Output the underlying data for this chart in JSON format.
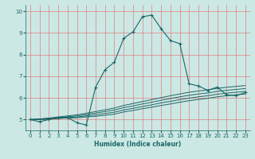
{
  "title": "",
  "xlabel": "Humidex (Indice chaleur)",
  "bg_color": "#cce8e4",
  "grid_color": "#e08080",
  "line_color": "#1a6666",
  "xlim": [
    -0.5,
    23.5
  ],
  "ylim": [
    4.5,
    10.3
  ],
  "xticks": [
    0,
    1,
    2,
    3,
    4,
    5,
    6,
    7,
    8,
    9,
    10,
    11,
    12,
    13,
    14,
    15,
    16,
    17,
    18,
    19,
    20,
    21,
    22,
    23
  ],
  "yticks": [
    5,
    6,
    7,
    8,
    9,
    10
  ],
  "main_x": [
    0,
    1,
    2,
    3,
    4,
    5,
    6,
    7,
    8,
    9,
    10,
    11,
    12,
    13,
    14,
    15,
    16,
    17,
    18,
    19,
    20,
    21,
    22,
    23
  ],
  "main_y": [
    5.0,
    4.9,
    5.0,
    5.1,
    5.1,
    4.85,
    4.75,
    6.5,
    7.3,
    7.65,
    8.75,
    9.05,
    9.75,
    9.82,
    9.2,
    8.65,
    8.5,
    6.65,
    6.55,
    6.35,
    6.5,
    6.15,
    6.1,
    6.25
  ],
  "flat1_x": [
    0,
    1,
    2,
    3,
    4,
    5,
    6,
    7,
    8,
    9,
    10,
    11,
    12,
    13,
    14,
    15,
    16,
    17,
    18,
    19,
    20,
    21,
    22,
    23
  ],
  "flat1_y": [
    5.0,
    5.0,
    5.02,
    5.05,
    5.07,
    5.08,
    5.12,
    5.15,
    5.2,
    5.25,
    5.35,
    5.42,
    5.5,
    5.57,
    5.65,
    5.72,
    5.8,
    5.87,
    5.93,
    5.98,
    6.05,
    6.1,
    6.14,
    6.18
  ],
  "flat2_x": [
    0,
    1,
    2,
    3,
    4,
    5,
    6,
    7,
    8,
    9,
    10,
    11,
    12,
    13,
    14,
    15,
    16,
    17,
    18,
    19,
    20,
    21,
    22,
    23
  ],
  "flat2_y": [
    5.0,
    5.01,
    5.03,
    5.06,
    5.09,
    5.12,
    5.17,
    5.22,
    5.28,
    5.34,
    5.44,
    5.52,
    5.6,
    5.68,
    5.77,
    5.84,
    5.92,
    5.99,
    6.05,
    6.1,
    6.17,
    6.22,
    6.26,
    6.3
  ],
  "flat3_x": [
    0,
    1,
    2,
    3,
    4,
    5,
    6,
    7,
    8,
    9,
    10,
    11,
    12,
    13,
    14,
    15,
    16,
    17,
    18,
    19,
    20,
    21,
    22,
    23
  ],
  "flat3_y": [
    5.0,
    5.02,
    5.05,
    5.09,
    5.13,
    5.17,
    5.23,
    5.3,
    5.37,
    5.44,
    5.55,
    5.63,
    5.72,
    5.8,
    5.89,
    5.97,
    6.05,
    6.12,
    6.18,
    6.23,
    6.3,
    6.35,
    6.39,
    6.43
  ],
  "flat4_x": [
    0,
    1,
    2,
    3,
    4,
    5,
    6,
    7,
    8,
    9,
    10,
    11,
    12,
    13,
    14,
    15,
    16,
    17,
    18,
    19,
    20,
    21,
    22,
    23
  ],
  "flat4_y": [
    5.0,
    5.03,
    5.07,
    5.12,
    5.17,
    5.22,
    5.29,
    5.37,
    5.45,
    5.53,
    5.65,
    5.74,
    5.83,
    5.92,
    6.01,
    6.1,
    6.18,
    6.26,
    6.32,
    6.37,
    6.44,
    6.49,
    6.53,
    6.57
  ]
}
